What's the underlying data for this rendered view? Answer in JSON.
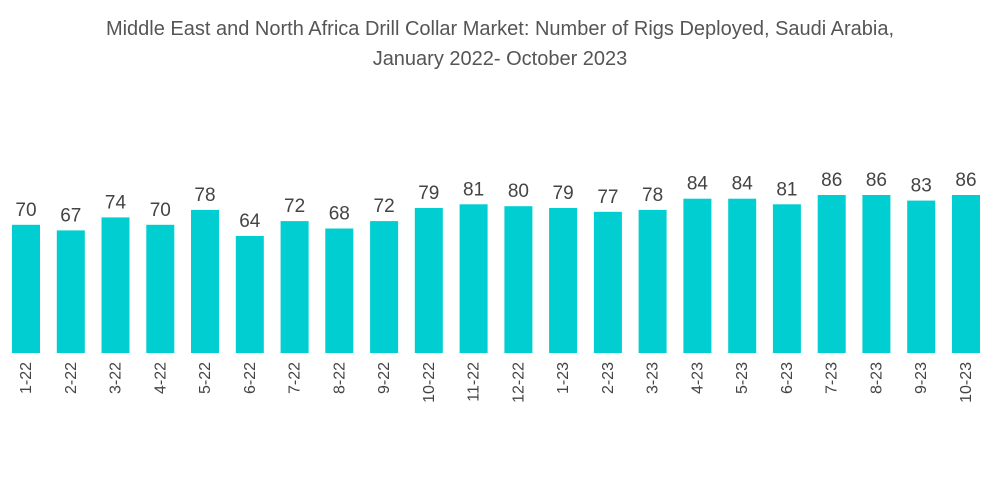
{
  "title": {
    "line1": "Middle East and North Africa Drill Collar Market: Number of Rigs Deployed, Saudi Arabia,",
    "line2": "January 2022- October 2023"
  },
  "colors": {
    "bar": "#00CED1",
    "text": "#444444",
    "title": "#555555"
  },
  "chart_data": {
    "type": "bar",
    "title": "Middle East and North Africa Drill Collar Market: Number of Rigs Deployed, Saudi Arabia, January 2022- October 2023",
    "xlabel": "",
    "ylabel": "",
    "categories": [
      "1-22",
      "2-22",
      "3-22",
      "4-22",
      "5-22",
      "6-22",
      "7-22",
      "8-22",
      "9-22",
      "10-22",
      "11-22",
      "12-22",
      "1-23",
      "2-23",
      "3-23",
      "4-23",
      "5-23",
      "6-23",
      "7-23",
      "8-23",
      "9-23",
      "10-23"
    ],
    "values": [
      70,
      67,
      74,
      70,
      78,
      64,
      72,
      68,
      72,
      79,
      81,
      80,
      79,
      77,
      78,
      84,
      84,
      81,
      86,
      86,
      83,
      86
    ],
    "ylim": [
      0,
      86
    ],
    "grid": false,
    "legend": "none"
  }
}
